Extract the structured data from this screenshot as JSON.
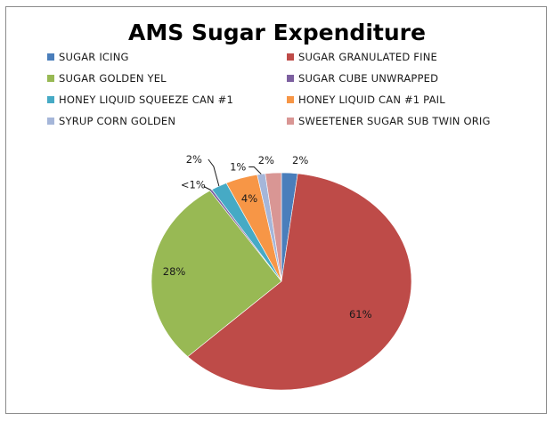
{
  "chart_data": {
    "type": "pie",
    "title": "AMS Sugar Expenditure",
    "slices": [
      {
        "name": "SUGAR ICING",
        "value": 2,
        "label": "2%",
        "color": "#4a7ebb"
      },
      {
        "name": "SUGAR GRANULATED FINE",
        "value": 61,
        "label": "61%",
        "color": "#be4b48"
      },
      {
        "name": "SUGAR GOLDEN YEL",
        "value": 28,
        "label": "28%",
        "color": "#98b954"
      },
      {
        "name": "SUGAR CUBE UNWRAPPED",
        "value": 0.3,
        "label": "<1%",
        "color": "#7d60a0"
      },
      {
        "name": "HONEY LIQUID SQUEEZE CAN #1",
        "value": 2,
        "label": "2%",
        "color": "#46aac5"
      },
      {
        "name": "HONEY LIQUID CAN #1 PAIL",
        "value": 4,
        "label": "4%",
        "color": "#f79646"
      },
      {
        "name": "SYRUP CORN GOLDEN",
        "value": 1,
        "label": "1%",
        "color": "#a5b6d9"
      },
      {
        "name": "SWEETENER SUGAR SUB TWIN ORIG",
        "value": 2,
        "label": "2%",
        "color": "#d99694"
      }
    ],
    "legend_position": "top"
  }
}
